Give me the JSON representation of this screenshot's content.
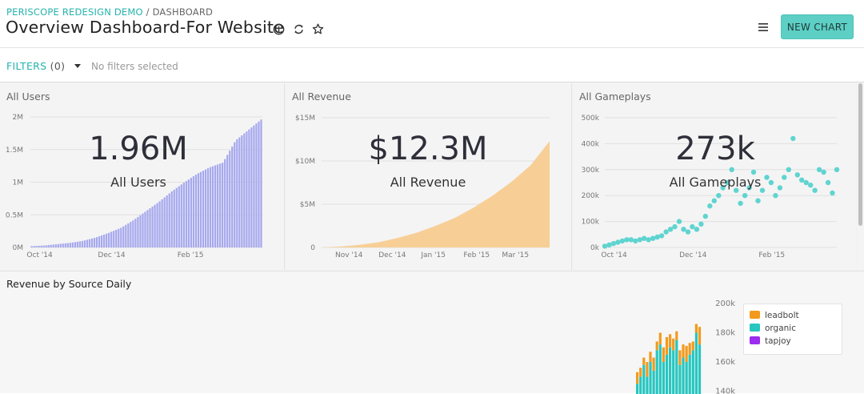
{
  "header": {
    "project": "PERISCOPE REDESIGN DEMO",
    "separator": "/",
    "section": "DASHBOARD",
    "title": "Overview Dashboard-For Website",
    "new_chart_label": "NEW CHART"
  },
  "filters": {
    "label": "FILTERS",
    "count": "(0)",
    "status": "No filters selected"
  },
  "colors": {
    "accent": "#25b3ad",
    "button": "#5dcfc4",
    "users_bar": "#a6a8ee",
    "revenue_area": "#f7cf96",
    "gameplays_dot": "#5fd4d0",
    "leadbolt": "#f29a1d",
    "organic": "#27c6c0",
    "tapjoy": "#9b2cf0"
  },
  "panels": {
    "users": {
      "title": "All Users",
      "value": "1.96M",
      "label": "All Users"
    },
    "revenue": {
      "title": "All Revenue",
      "value": "$12.3M",
      "label": "All Revenue"
    },
    "gameplays": {
      "title": "All Gameplays",
      "value": "273k",
      "label": "All Gameplays"
    },
    "revenue_source": {
      "title": "Revenue by Source Daily"
    }
  },
  "chart_data": [
    {
      "type": "bar",
      "title": "All Users",
      "y_ticks": [
        "0M",
        "0.5M",
        "1M",
        "1.5M",
        "2M"
      ],
      "ylim": [
        0,
        2000000
      ],
      "x_ticks": [
        "Oct '14",
        "Dec '14",
        "Feb '15"
      ],
      "x_tick_pos": [
        0.04,
        0.35,
        0.69
      ],
      "values": [
        20000,
        30000,
        50000,
        70000,
        100000,
        150000,
        220000,
        300000,
        420000,
        560000,
        700000,
        860000,
        1000000,
        1130000,
        1230000,
        1300000,
        1640000,
        1800000,
        1960000
      ]
    },
    {
      "type": "area",
      "title": "All Revenue",
      "y_ticks": [
        "0",
        "$5M",
        "$10M",
        "$15M"
      ],
      "ylim": [
        0,
        15000000
      ],
      "x_ticks": [
        "Nov '14",
        "Dec '14",
        "Jan '15",
        "Feb '15",
        "Mar '15"
      ],
      "x_tick_pos": [
        0.12,
        0.31,
        0.49,
        0.68,
        0.85
      ],
      "values": [
        0,
        100000,
        300000,
        600000,
        1100000,
        1700000,
        2500000,
        3400000,
        4600000,
        6000000,
        7600000,
        9500000,
        12300000
      ]
    },
    {
      "type": "scatter",
      "title": "All Gameplays",
      "y_ticks": [
        "0k",
        "100k",
        "200k",
        "300k",
        "400k",
        "500k"
      ],
      "ylim": [
        0,
        500000
      ],
      "x_ticks": [
        "Oct '14",
        "Dec '14",
        "Feb '15"
      ],
      "x_tick_pos": [
        0.04,
        0.38,
        0.72
      ],
      "y": [
        5000,
        10000,
        15000,
        20000,
        25000,
        30000,
        30000,
        25000,
        30000,
        35000,
        30000,
        35000,
        40000,
        45000,
        60000,
        70000,
        80000,
        100000,
        70000,
        60000,
        80000,
        70000,
        90000,
        120000,
        160000,
        180000,
        200000,
        230000,
        250000,
        300000,
        220000,
        170000,
        200000,
        230000,
        290000,
        180000,
        220000,
        270000,
        250000,
        200000,
        230000,
        270000,
        300000,
        420000,
        280000,
        260000,
        250000,
        240000,
        220000,
        300000,
        290000,
        250000,
        210000,
        300000
      ]
    },
    {
      "type": "bar",
      "title": "Revenue by Source Daily",
      "legend": [
        "leadbolt",
        "organic",
        "tapjoy"
      ],
      "y_ticks": [
        "200k",
        "180k",
        "160k",
        "140k"
      ],
      "ylim": [
        140000,
        200000
      ],
      "series": [
        {
          "name": "organic",
          "values": [
            145000,
            150000,
            158000,
            150000,
            160000,
            154000,
            168000,
            172000,
            160000,
            165000,
            170000,
            168000,
            175000,
            158000,
            163000,
            160000,
            165000,
            168000,
            180000,
            172000
          ]
        },
        {
          "name": "leadbolt",
          "values": [
            8000,
            6000,
            5000,
            10000,
            7000,
            9000,
            6000,
            8000,
            10000,
            12000,
            9000,
            8000,
            6000,
            10000,
            9000,
            11000,
            8000,
            6000,
            6000,
            12000
          ]
        }
      ]
    }
  ]
}
